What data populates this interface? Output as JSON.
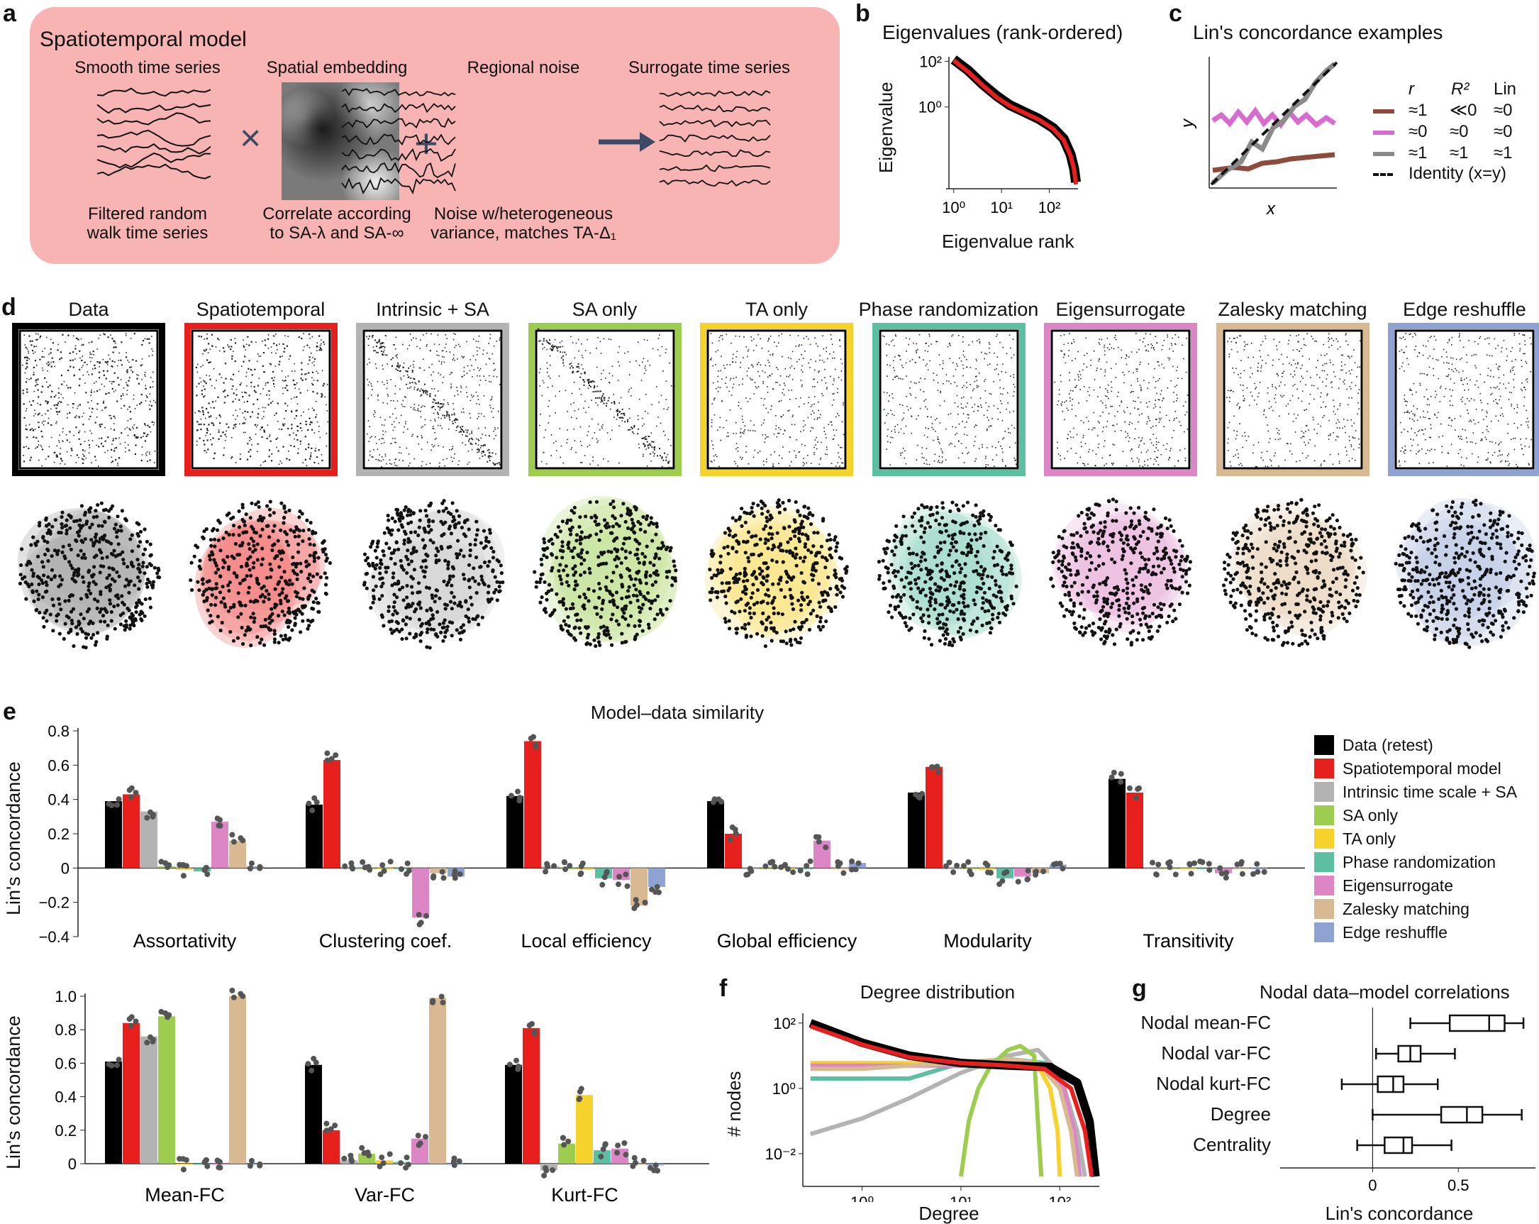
{
  "panels": {
    "a": {
      "letter": "a",
      "title": "Spatiotemporal model",
      "smooth_title": "Smooth time series",
      "spatial_title": "Spatial embedding",
      "noise_title": "Regional noise",
      "surrogate_title": "Surrogate time series",
      "times": "×",
      "plus": "+",
      "caption_smooth_1": "Filtered random",
      "caption_smooth_2": "walk time series",
      "caption_spatial_1": "Correlate according",
      "caption_spatial_2": "to SA-λ and SA-∞",
      "caption_noise_1": "Noise w/heterogeneous",
      "caption_noise_2": "variance, matches TA-Δ₁"
    },
    "b": {
      "letter": "b",
      "title": "Eigenvalues (rank-ordered)",
      "ylabel": "Eigenvalue",
      "xlabel": "Eigenvalue rank"
    },
    "c": {
      "letter": "c",
      "title": "Lin's concordance examples",
      "xlabel": "x",
      "ylabel": "y",
      "col_r": "r",
      "col_r2": "R²",
      "col_lin": "Lin",
      "rows": [
        {
          "color": "#8e4a3d",
          "r": "≈1",
          "r2": "≪0",
          "lin": "≈0"
        },
        {
          "color": "#d86bd0",
          "r": "≈0",
          "r2": "≈0",
          "lin": "≈0"
        },
        {
          "color": "#8a8a8a",
          "r": "≈1",
          "r2": "≈1",
          "lin": "≈1"
        }
      ],
      "identity_label": "Identity (x=y)"
    },
    "d": {
      "letter": "d",
      "models": [
        {
          "name": "Data",
          "color": "#000000"
        },
        {
          "name": "Spatiotemporal",
          "color": "#e8201d"
        },
        {
          "name": "Intrinsic + SA",
          "color": "#b3b3b3"
        },
        {
          "name": "SA only",
          "color": "#9ccd4e"
        },
        {
          "name": "TA only",
          "color": "#f6d22c"
        },
        {
          "name": "Phase randomization",
          "color": "#5cbfa1"
        },
        {
          "name": "Eigensurrogate",
          "color": "#dd86c6"
        },
        {
          "name": "Zalesky matching",
          "color": "#d9b992"
        },
        {
          "name": "Edge reshuffle",
          "color": "#8fa3d2"
        }
      ]
    },
    "e": {
      "letter": "e",
      "title": "Model–data similarity",
      "ylabel": "Lin's concordance",
      "legend": [
        {
          "label": "Data (retest)",
          "color": "#000000"
        },
        {
          "label": "Spatiotemporal model",
          "color": "#e8201d"
        },
        {
          "label": "Intrinsic time scale + SA",
          "color": "#b3b3b3"
        },
        {
          "label": "SA only",
          "color": "#9ccd4e"
        },
        {
          "label": "TA only",
          "color": "#f6d22c"
        },
        {
          "label": "Phase randomization",
          "color": "#5cbfa1"
        },
        {
          "label": "Eigensurrogate",
          "color": "#dd86c6"
        },
        {
          "label": "Zalesky matching",
          "color": "#d9b992"
        },
        {
          "label": "Edge reshuffle",
          "color": "#8fa3d2"
        }
      ]
    },
    "f": {
      "letter": "f",
      "title": "Degree distribution",
      "ylabel": "# nodes",
      "xlabel": "Degree"
    },
    "g": {
      "letter": "g",
      "title": "Nodal data–model correlations",
      "xlabel": "Lin's concordance",
      "rows": [
        "Nodal mean-FC",
        "Nodal var-FC",
        "Nodal kurt-FC",
        "Degree",
        "Centrality"
      ]
    }
  },
  "chart_data": [
    {
      "id": "b",
      "type": "line",
      "title": "Eigenvalues (rank-ordered)",
      "xlabel": "Eigenvalue rank",
      "ylabel": "Eigenvalue",
      "xscale": "log",
      "yscale": "log",
      "xticks": [
        "10⁰",
        "10¹",
        "10²"
      ],
      "yticks": [
        "10²",
        "10⁰"
      ],
      "series": [
        {
          "color": "#000000",
          "x": [
            1,
            2,
            4,
            8,
            15,
            30,
            60,
            120,
            200,
            280,
            330,
            360
          ],
          "y": [
            120,
            40,
            10,
            3,
            1.2,
            0.6,
            0.3,
            0.12,
            0.04,
            0.008,
            0.002,
            0.0005
          ]
        },
        {
          "color": "#e8201d",
          "x": [
            1,
            2,
            4,
            8,
            15,
            30,
            60,
            120,
            200,
            280,
            330,
            360
          ],
          "y": [
            110,
            35,
            9,
            2.6,
            1.1,
            0.55,
            0.28,
            0.11,
            0.035,
            0.007,
            0.0018,
            0.0004
          ]
        }
      ]
    },
    {
      "id": "e-top",
      "type": "bar",
      "title": "Model–data similarity",
      "ylabel": "Lin's concordance",
      "ylim": [
        -0.4,
        0.8
      ],
      "yticks": [
        "0.8",
        "0.6",
        "0.4",
        "0.2",
        "0",
        "−0.2",
        "−0.4"
      ],
      "categories": [
        "Assortativity",
        "Clustering coef.",
        "Local efficiency",
        "Global efficiency",
        "Modularity",
        "Transitivity"
      ],
      "series": [
        {
          "name": "Data (retest)",
          "values": [
            0.39,
            0.37,
            0.42,
            0.39,
            0.44,
            0.52
          ]
        },
        {
          "name": "Spatiotemporal model",
          "values": [
            0.43,
            0.63,
            0.74,
            0.2,
            0.59,
            0.44
          ]
        },
        {
          "name": "Intrinsic time scale + SA",
          "values": [
            0.33,
            0.0,
            0.01,
            0.0,
            0.0,
            0.0
          ]
        },
        {
          "name": "SA only",
          "values": [
            0.01,
            0.0,
            0.0,
            0.0,
            0.0,
            0.0
          ]
        },
        {
          "name": "TA only",
          "values": [
            -0.01,
            0.0,
            -0.01,
            0.0,
            -0.01,
            0.0
          ]
        },
        {
          "name": "Phase randomization",
          "values": [
            -0.02,
            0.0,
            -0.06,
            0.0,
            -0.06,
            0.0
          ]
        },
        {
          "name": "Eigensurrogate",
          "values": [
            0.27,
            -0.29,
            -0.07,
            0.16,
            -0.05,
            -0.03
          ]
        },
        {
          "name": "Zalesky matching",
          "values": [
            0.16,
            -0.03,
            -0.22,
            0.0,
            -0.03,
            0.0
          ]
        },
        {
          "name": "Edge reshuffle",
          "values": [
            0.01,
            -0.05,
            -0.11,
            0.03,
            0.02,
            0.0
          ]
        }
      ]
    },
    {
      "id": "e-bottom",
      "type": "bar",
      "ylabel": "Lin's concordance",
      "ylim": [
        0,
        1.0
      ],
      "yticks": [
        "1.0",
        "0.8",
        "0.6",
        "0.4",
        "0.2",
        "0"
      ],
      "categories": [
        "Mean-FC",
        "Var-FC",
        "Kurt-FC"
      ],
      "series": [
        {
          "name": "Data (retest)",
          "values": [
            0.61,
            0.59,
            0.59
          ]
        },
        {
          "name": "Spatiotemporal model",
          "values": [
            0.84,
            0.2,
            0.81
          ]
        },
        {
          "name": "Intrinsic time scale + SA",
          "values": [
            0.76,
            0.02,
            -0.04
          ]
        },
        {
          "name": "SA only",
          "values": [
            0.88,
            0.06,
            0.12
          ]
        },
        {
          "name": "TA only",
          "values": [
            0.0,
            0.02,
            0.41
          ]
        },
        {
          "name": "Phase randomization",
          "values": [
            0.0,
            0.01,
            0.08
          ]
        },
        {
          "name": "Eigensurrogate",
          "values": [
            0.0,
            0.15,
            0.09
          ]
        },
        {
          "name": "Zalesky matching",
          "values": [
            1.0,
            0.99,
            0.0
          ]
        },
        {
          "name": "Edge reshuffle",
          "values": [
            0.0,
            0.0,
            -0.01
          ]
        }
      ]
    },
    {
      "id": "f",
      "type": "line",
      "title": "Degree distribution",
      "xlabel": "Degree",
      "ylabel": "# nodes",
      "xscale": "log",
      "yscale": "log",
      "xticks": [
        "10⁰",
        "10¹",
        "10²"
      ],
      "yticks": [
        "10²",
        "10⁰",
        "10⁻²"
      ],
      "series": [
        {
          "color": "#000000",
          "x": [
            0.3,
            1,
            3,
            10,
            30,
            80,
            150,
            200,
            230
          ],
          "y": [
            100,
            25,
            10,
            6,
            5,
            4.5,
            1.5,
            0.1,
            0.002
          ]
        },
        {
          "color": "#e8201d",
          "x": [
            0.3,
            1,
            3,
            10,
            30,
            70,
            130,
            180,
            210
          ],
          "y": [
            80,
            22,
            9,
            6,
            5,
            4,
            1,
            0.05,
            0.002
          ]
        },
        {
          "color": "#b3b3b3",
          "x": [
            0.3,
            1,
            3,
            10,
            30,
            60,
            100,
            150,
            180
          ],
          "y": [
            0.04,
            0.12,
            0.5,
            3,
            10,
            15,
            3,
            0.05,
            0.002
          ]
        },
        {
          "color": "#9ccd4e",
          "x": [
            10,
            12,
            15,
            20,
            30,
            40,
            55,
            60,
            65
          ],
          "y": [
            0.002,
            0.1,
            1,
            5,
            15,
            20,
            10,
            0.1,
            0.002
          ]
        },
        {
          "color": "#f6d22c",
          "x": [
            0.3,
            1,
            3,
            10,
            30,
            60,
            80,
            95,
            100
          ],
          "y": [
            6,
            6,
            6,
            6,
            6,
            5,
            1,
            0.05,
            0.002
          ]
        },
        {
          "color": "#5cbfa1",
          "x": [
            0.3,
            1,
            3,
            10,
            30,
            70,
            110,
            140,
            160
          ],
          "y": [
            2,
            2,
            2,
            6,
            8,
            6,
            1,
            0.05,
            0.002
          ]
        },
        {
          "color": "#dd86c6",
          "x": [
            0.3,
            1,
            3,
            10,
            30,
            70,
            110,
            140,
            160
          ],
          "y": [
            5,
            5,
            5,
            5,
            6,
            5,
            1,
            0.05,
            0.002
          ]
        },
        {
          "color": "#d9b992",
          "x": [
            0.3,
            1,
            3,
            10,
            30,
            60,
            100,
            130,
            150
          ],
          "y": [
            4,
            4,
            5,
            6,
            8,
            6,
            1,
            0.05,
            0.002
          ]
        }
      ]
    },
    {
      "id": "g",
      "type": "box",
      "title": "Nodal data–model correlations",
      "xlabel": "Lin's concordance",
      "xticks": [
        "0",
        "0.5"
      ],
      "categories": [
        "Nodal mean-FC",
        "Nodal var-FC",
        "Nodal kurt-FC",
        "Degree",
        "Centrality"
      ],
      "boxes": [
        {
          "min": 0.22,
          "q1": 0.45,
          "median": 0.68,
          "q3": 0.77,
          "max": 0.88
        },
        {
          "min": 0.02,
          "q1": 0.15,
          "median": 0.22,
          "q3": 0.28,
          "max": 0.48
        },
        {
          "min": -0.18,
          "q1": 0.03,
          "median": 0.12,
          "q3": 0.18,
          "max": 0.38
        },
        {
          "min": 0.0,
          "q1": 0.4,
          "median": 0.55,
          "q3": 0.64,
          "max": 0.87
        },
        {
          "min": -0.09,
          "q1": 0.07,
          "median": 0.18,
          "q3": 0.23,
          "max": 0.46
        }
      ]
    }
  ]
}
